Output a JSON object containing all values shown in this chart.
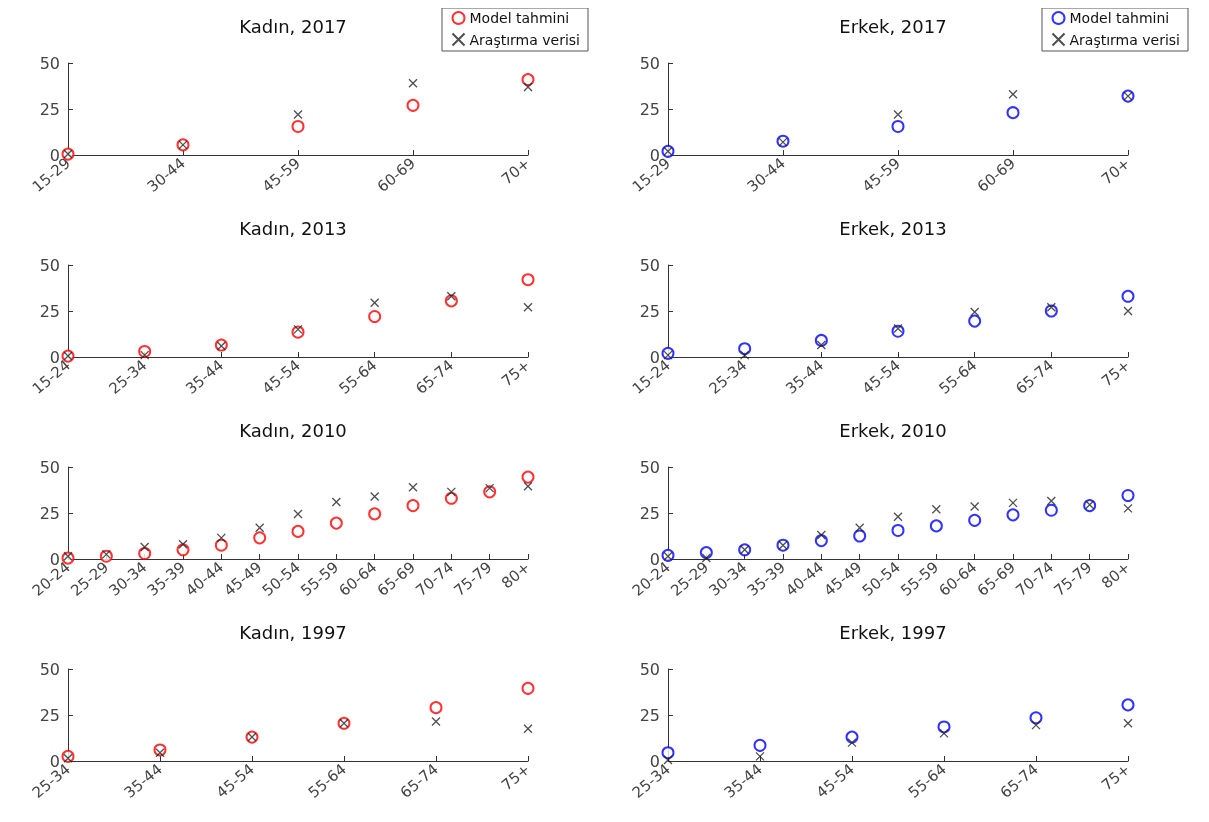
{
  "chart_data": [
    {
      "type": "scatter",
      "title": "Kadın, 2017",
      "categories": [
        "15-29",
        "30-44",
        "45-59",
        "60-69",
        "70+"
      ],
      "ylim": [
        0,
        50
      ],
      "yticks": [
        0,
        25,
        50
      ],
      "grid": false,
      "legend": "top right",
      "series": [
        {
          "name": "Model tahmini",
          "color": "#ff0000",
          "marker": "circle",
          "values": [
            0.5,
            5.5,
            15.5,
            27,
            41
          ]
        },
        {
          "name": "Araştırma verisi",
          "color": "#222222",
          "marker": "cross",
          "values": [
            0.5,
            5.5,
            22,
            39,
            37
          ]
        }
      ]
    },
    {
      "type": "scatter",
      "title": "Erkek, 2017",
      "categories": [
        "15-29",
        "30-44",
        "45-59",
        "60-69",
        "70+"
      ],
      "ylim": [
        0,
        50
      ],
      "yticks": [
        0,
        25,
        50
      ],
      "grid": false,
      "legend": "top right",
      "series": [
        {
          "name": "Model tahmini",
          "color": "#0000ff",
          "marker": "circle",
          "values": [
            2,
            7.5,
            15.5,
            23,
            32
          ]
        },
        {
          "name": "Araştırma verisi",
          "color": "#222222",
          "marker": "cross",
          "values": [
            2,
            7,
            22,
            33,
            32
          ]
        }
      ]
    },
    {
      "type": "scatter",
      "title": "Kadın, 2013",
      "categories": [
        "15-24",
        "25-34",
        "35-44",
        "45-54",
        "55-64",
        "65-74",
        "75+"
      ],
      "ylim": [
        0,
        50
      ],
      "yticks": [
        0,
        25,
        50
      ],
      "grid": false,
      "series": [
        {
          "color": "#ff0000",
          "marker": "circle",
          "values": [
            0.5,
            3,
            6.5,
            13.5,
            22,
            30.5,
            42
          ]
        },
        {
          "color": "#222222",
          "marker": "cross",
          "values": [
            0.5,
            1,
            6,
            15,
            29.5,
            33,
            27
          ]
        }
      ]
    },
    {
      "type": "scatter",
      "title": "Erkek, 2013",
      "categories": [
        "15-24",
        "25-34",
        "35-44",
        "45-54",
        "55-64",
        "65-74",
        "75+"
      ],
      "ylim": [
        0,
        50
      ],
      "yticks": [
        0,
        25,
        50
      ],
      "grid": false,
      "series": [
        {
          "color": "#0000ff",
          "marker": "circle",
          "values": [
            2,
            4.5,
            9,
            14,
            19.5,
            25,
            33
          ]
        },
        {
          "color": "#222222",
          "marker": "cross",
          "values": [
            1,
            1,
            6.5,
            15.5,
            24.5,
            27,
            25
          ]
        }
      ]
    },
    {
      "type": "scatter",
      "title": "Kadın, 2010",
      "categories": [
        "20-24",
        "25-29",
        "30-34",
        "35-39",
        "40-44",
        "45-49",
        "50-54",
        "55-59",
        "60-64",
        "65-69",
        "70-74",
        "75-79",
        "80+"
      ],
      "ylim": [
        0,
        50
      ],
      "yticks": [
        0,
        25,
        50
      ],
      "grid": false,
      "series": [
        {
          "color": "#ff0000",
          "marker": "circle",
          "values": [
            0.5,
            1.5,
            3,
            5,
            7.5,
            11.5,
            15,
            19.5,
            24.5,
            29,
            33,
            36.5,
            44.5
          ]
        },
        {
          "color": "#222222",
          "marker": "cross",
          "values": [
            1.5,
            2.5,
            6.5,
            8,
            11.5,
            17,
            24.5,
            31,
            34,
            39,
            36.5,
            38.5,
            39.5
          ]
        }
      ]
    },
    {
      "type": "scatter",
      "title": "Erkek, 2010",
      "categories": [
        "20-24",
        "25-29",
        "30-34",
        "35-39",
        "40-44",
        "45-49",
        "50-54",
        "55-59",
        "60-64",
        "65-69",
        "70-74",
        "75-79",
        "80+"
      ],
      "ylim": [
        0,
        50
      ],
      "yticks": [
        0,
        25,
        50
      ],
      "grid": false,
      "series": [
        {
          "color": "#0000ff",
          "marker": "circle",
          "values": [
            2,
            3.5,
            5,
            7.5,
            10,
            12.5,
            15.5,
            18,
            21,
            24,
            26.5,
            29,
            34.5
          ]
        },
        {
          "color": "#222222",
          "marker": "cross",
          "values": [
            1.5,
            0.5,
            5,
            7.5,
            13,
            17,
            23,
            27,
            28.5,
            30.5,
            31.5,
            29.5,
            27.5
          ]
        }
      ]
    },
    {
      "type": "scatter",
      "title": "Kadın, 1997",
      "categories": [
        "25-34",
        "35-44",
        "45-54",
        "55-64",
        "65-74",
        "75+"
      ],
      "ylim": [
        0,
        50
      ],
      "yticks": [
        0,
        25,
        50
      ],
      "grid": false,
      "series": [
        {
          "color": "#ff0000",
          "marker": "circle",
          "values": [
            2.5,
            6,
            13,
            20.5,
            29,
            39.5
          ]
        },
        {
          "color": "#222222",
          "marker": "cross",
          "values": [
            1.5,
            4.5,
            13,
            20.5,
            21.5,
            17.5
          ]
        }
      ]
    },
    {
      "type": "scatter",
      "title": "Erkek, 1997",
      "categories": [
        "25-34",
        "35-44",
        "45-54",
        "55-64",
        "65-74",
        "75+"
      ],
      "ylim": [
        0,
        50
      ],
      "yticks": [
        0,
        25,
        50
      ],
      "grid": false,
      "series": [
        {
          "color": "#0000ff",
          "marker": "circle",
          "values": [
            4.5,
            8.5,
            13,
            18.5,
            23.5,
            30.5
          ]
        },
        {
          "color": "#222222",
          "marker": "cross",
          "values": [
            0.5,
            2.5,
            10,
            15,
            19.5,
            20.5
          ]
        }
      ]
    }
  ]
}
